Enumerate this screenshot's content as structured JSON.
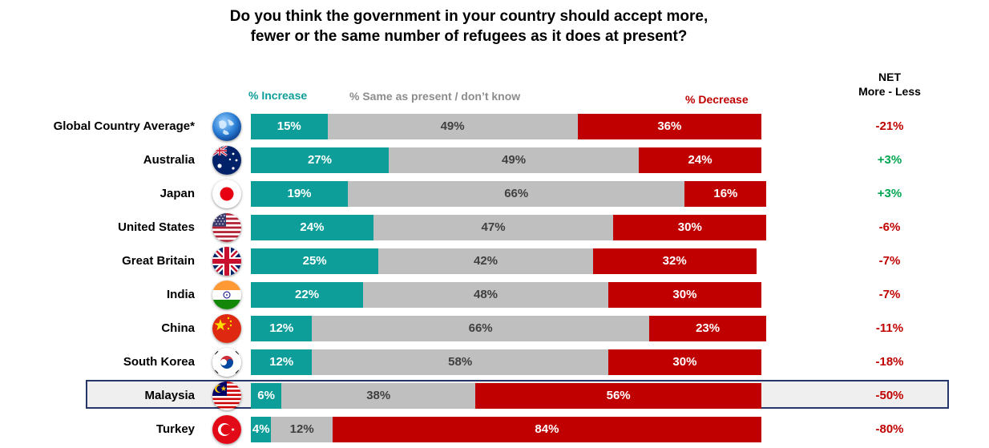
{
  "chart_data": {
    "type": "bar",
    "orientation": "horizontal",
    "stacked": true,
    "title": "Do you think the government in your country should accept more, fewer or the same number of refugees as it does at present?",
    "title_lines": [
      "Do you think the government in your country should accept more,",
      "fewer or the same number of refugees as it does at present?"
    ],
    "legend": {
      "increase": "% Increase",
      "same": "% Same as present / don’t know",
      "decrease": "% Decrease"
    },
    "net_header": [
      "NET",
      "More - Less"
    ],
    "categories": [
      "Global Country Average*",
      "Australia",
      "Japan",
      "United States",
      "Great Britain",
      "India",
      "China",
      "South Korea",
      "Malaysia",
      "Turkey"
    ],
    "series": [
      {
        "name": "% Increase",
        "values": [
          15,
          27,
          19,
          24,
          25,
          22,
          12,
          12,
          6,
          4
        ]
      },
      {
        "name": "% Same as present / don’t know",
        "values": [
          49,
          49,
          66,
          47,
          42,
          48,
          66,
          58,
          38,
          12
        ]
      },
      {
        "name": "% Decrease",
        "values": [
          36,
          24,
          16,
          30,
          32,
          30,
          23,
          30,
          56,
          84
        ]
      }
    ],
    "net": [
      "-21%",
      "+3%",
      "+3%",
      "-6%",
      "-7%",
      "-7%",
      "-11%",
      "-18%",
      "-50%",
      "-80%"
    ],
    "highlighted_category": "Malaysia",
    "xlim": [
      0,
      100
    ]
  },
  "flags": [
    "globe",
    "australia",
    "japan",
    "usa",
    "uk",
    "india",
    "china",
    "south-korea",
    "malaysia",
    "turkey"
  ],
  "colors": {
    "increase": "#0e9e9a",
    "same": "#bfbfbf",
    "decrease": "#c00000",
    "net_positive": "#00a650",
    "net_negative": "#c00000",
    "highlight_border": "#27366b"
  }
}
